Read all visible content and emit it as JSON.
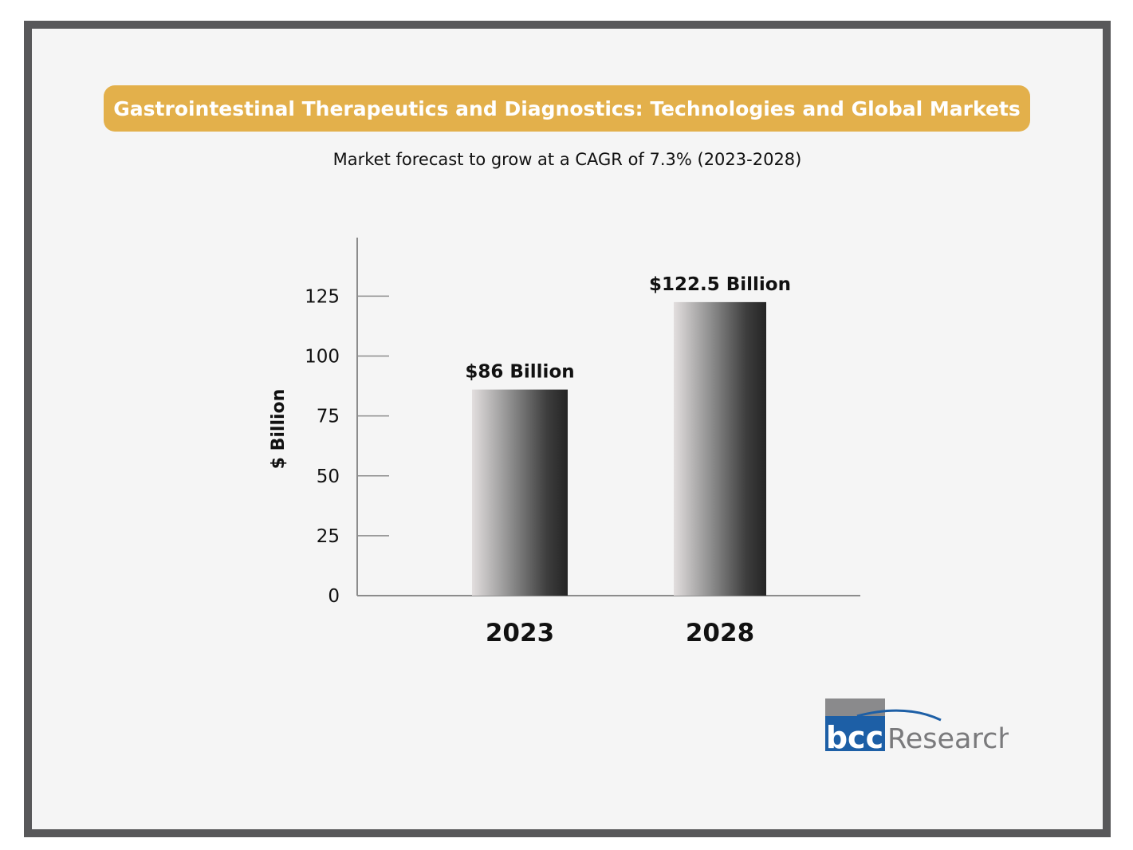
{
  "banner": {
    "title": "Gastrointestinal Therapeutics and Diagnostics: Technologies and Global Markets",
    "color": "#e3b04b"
  },
  "subtitle": "Market forecast to grow at a CAGR of 7.3% (2023-2028)",
  "chart_data": {
    "type": "bar",
    "categories": [
      "2023",
      "2028"
    ],
    "values": [
      86,
      122.5
    ],
    "data_labels": [
      "$86 Billion",
      "$122.5 Billion"
    ],
    "ylabel": "$ Billion",
    "xlabel": "",
    "ylim": [
      0,
      150
    ],
    "yticks": [
      0,
      25,
      50,
      75,
      100,
      125
    ],
    "grid": false,
    "legend": "none"
  },
  "logo": {
    "brand": "bcc",
    "suffix": "Research",
    "colors": {
      "blue": "#1d5fa6",
      "gray": "#7a7a7c"
    }
  }
}
